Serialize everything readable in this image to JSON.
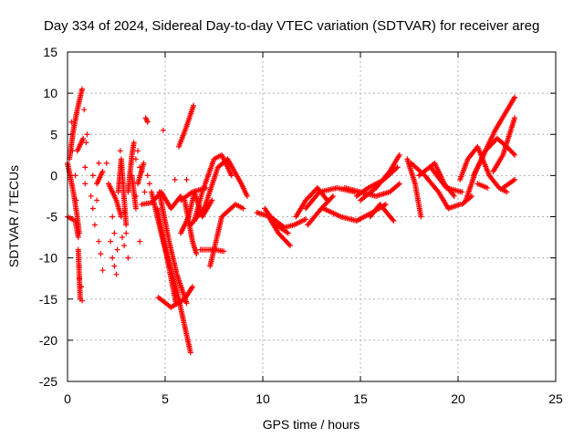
{
  "chart_data": {
    "type": "scatter",
    "title": "Day 334 of 2024, Sidereal Day-to-day VTEC variation (SDTVAR) for receiver areg",
    "xlabel": "GPS time / hours",
    "ylabel": "SDTVAR / TECUs",
    "xlim": [
      0,
      25
    ],
    "ylim": [
      -25,
      15
    ],
    "xticks": [
      0,
      5,
      10,
      15,
      20,
      25
    ],
    "yticks": [
      -25,
      -20,
      -15,
      -10,
      -5,
      0,
      5,
      10,
      15
    ],
    "grid": true,
    "marker": "+",
    "color": "#ff0000",
    "tracks": [
      {
        "points": [
          [
            0.0,
            1.5
          ],
          [
            0.3,
            -2.0
          ],
          [
            0.5,
            -5.0
          ],
          [
            0.6,
            -7.0
          ]
        ]
      },
      {
        "points": [
          [
            0.0,
            -5.0
          ],
          [
            0.4,
            -5.5
          ],
          [
            0.55,
            -7.5
          ]
        ]
      },
      {
        "points": [
          [
            0.1,
            2.0
          ],
          [
            0.3,
            5.5
          ],
          [
            0.5,
            8.0
          ],
          [
            0.75,
            10.5
          ]
        ]
      },
      {
        "points": [
          [
            0.5,
            3.0
          ],
          [
            0.8,
            4.5
          ]
        ]
      },
      {
        "points": [
          [
            0.55,
            -9.0
          ],
          [
            0.65,
            -15.0
          ]
        ]
      },
      {
        "points": [
          [
            1.5,
            -1.0
          ],
          [
            1.8,
            0.5
          ]
        ]
      },
      {
        "points": [
          [
            2.1,
            -1.0
          ],
          [
            2.5,
            -3.0
          ],
          [
            2.75,
            -5.0
          ]
        ]
      },
      {
        "points": [
          [
            2.6,
            -2.0
          ],
          [
            2.75,
            2.0
          ],
          [
            3.0,
            -6.0
          ]
        ]
      },
      {
        "points": [
          [
            3.1,
            -2.0
          ],
          [
            3.3,
            2.5
          ],
          [
            3.4,
            4.0
          ]
        ]
      },
      {
        "points": [
          [
            3.3,
            0.0
          ],
          [
            3.5,
            -4.0
          ]
        ]
      },
      {
        "points": [
          [
            3.6,
            -1.0
          ],
          [
            3.9,
            1.5
          ]
        ]
      },
      {
        "points": [
          [
            4.0,
            7.0
          ],
          [
            4.1,
            6.5
          ]
        ]
      },
      {
        "points": [
          [
            3.8,
            -3.5
          ],
          [
            4.3,
            -3.3
          ],
          [
            4.8,
            -2.0
          ],
          [
            5.3,
            -4.0
          ],
          [
            5.8,
            -2.5
          ]
        ]
      },
      {
        "points": [
          [
            4.3,
            -2.0
          ],
          [
            4.9,
            -8.0
          ],
          [
            5.6,
            -14.0
          ],
          [
            6.3,
            -21.5
          ]
        ]
      },
      {
        "points": [
          [
            4.6,
            -4.0
          ],
          [
            5.1,
            -10.0
          ],
          [
            5.55,
            -15.5
          ]
        ]
      },
      {
        "points": [
          [
            4.7,
            -2.0
          ],
          [
            5.2,
            -8.0
          ],
          [
            5.6,
            -12.0
          ],
          [
            6.1,
            -15.5
          ]
        ]
      },
      {
        "points": [
          [
            4.65,
            -14.8
          ],
          [
            5.3,
            -16.0
          ],
          [
            6.0,
            -15.0
          ],
          [
            6.4,
            -13.5
          ]
        ]
      },
      {
        "points": [
          [
            5.7,
            3.5
          ],
          [
            6.1,
            6.0
          ],
          [
            6.45,
            8.5
          ]
        ]
      },
      {
        "points": [
          [
            5.8,
            -3.0
          ],
          [
            6.4,
            -2.0
          ],
          [
            7.1,
            -1.5
          ]
        ]
      },
      {
        "points": [
          [
            5.8,
            -7.0
          ],
          [
            6.2,
            -5.0
          ],
          [
            6.5,
            -2.0
          ],
          [
            6.9,
            -5.0
          ],
          [
            7.4,
            -3.0
          ]
        ]
      },
      {
        "points": [
          [
            6.0,
            -3.0
          ],
          [
            6.4,
            -8.0
          ],
          [
            6.6,
            -9.5
          ]
        ]
      },
      {
        "points": [
          [
            6.5,
            -5.5
          ],
          [
            6.9,
            -2.0
          ],
          [
            7.5,
            2.0
          ],
          [
            7.9,
            2.5
          ],
          [
            8.4,
            0.0
          ]
        ]
      },
      {
        "points": [
          [
            6.3,
            -6.0
          ],
          [
            7.0,
            -4.0
          ],
          [
            7.7,
            1.0
          ],
          [
            8.2,
            2.0
          ],
          [
            8.9,
            -1.0
          ],
          [
            9.2,
            -2.5
          ]
        ]
      },
      {
        "points": [
          [
            6.8,
            -9.0
          ],
          [
            7.5,
            -9.0
          ],
          [
            8.0,
            -9.2
          ]
        ]
      },
      {
        "points": [
          [
            7.3,
            -11.0
          ],
          [
            7.9,
            -5.0
          ],
          [
            8.6,
            -3.5
          ],
          [
            9.0,
            -4.0
          ]
        ]
      },
      {
        "points": [
          [
            9.7,
            -4.5
          ],
          [
            10.4,
            -5.0
          ],
          [
            11.1,
            -6.3
          ],
          [
            11.6,
            -6.0
          ],
          [
            12.2,
            -5.3
          ]
        ]
      },
      {
        "points": [
          [
            10.1,
            -4.0
          ],
          [
            10.7,
            -6.0
          ],
          [
            11.3,
            -7.0
          ]
        ]
      },
      {
        "points": [
          [
            10.3,
            -5.0
          ],
          [
            10.8,
            -7.0
          ],
          [
            11.4,
            -8.5
          ]
        ]
      },
      {
        "points": [
          [
            11.7,
            -5.0
          ],
          [
            12.2,
            -3.0
          ],
          [
            12.8,
            -1.5
          ],
          [
            13.3,
            -3.0
          ]
        ]
      },
      {
        "points": [
          [
            12.2,
            -4.0
          ],
          [
            12.9,
            -2.0
          ],
          [
            13.8,
            -1.5
          ],
          [
            14.7,
            -2.0
          ]
        ]
      },
      {
        "points": [
          [
            12.3,
            -6.0
          ],
          [
            13.0,
            -4.0
          ],
          [
            13.6,
            -2.5
          ]
        ]
      },
      {
        "points": [
          [
            13.1,
            -4.0
          ],
          [
            14.0,
            -5.0
          ],
          [
            14.8,
            -5.5
          ],
          [
            15.6,
            -4.5
          ],
          [
            16.3,
            -3.5
          ]
        ]
      },
      {
        "points": [
          [
            14.2,
            -1.5
          ],
          [
            15.0,
            -2.0
          ],
          [
            15.8,
            -2.5
          ],
          [
            16.5,
            -2.0
          ],
          [
            17.0,
            -1.0
          ]
        ]
      },
      {
        "points": [
          [
            14.8,
            -2.5
          ],
          [
            15.4,
            -1.5
          ],
          [
            16.2,
            -0.5
          ],
          [
            16.9,
            1.0
          ]
        ]
      },
      {
        "points": [
          [
            15.0,
            -3.0
          ],
          [
            15.8,
            -1.5
          ],
          [
            16.5,
            0.5
          ],
          [
            17.0,
            2.5
          ]
        ]
      },
      {
        "points": [
          [
            15.5,
            -5.0
          ],
          [
            16.0,
            -3.5
          ],
          [
            16.7,
            -5.5
          ]
        ]
      },
      {
        "points": [
          [
            17.4,
            2.0
          ],
          [
            17.8,
            -1.0
          ],
          [
            18.1,
            -5.0
          ]
        ]
      },
      {
        "points": [
          [
            17.6,
            1.5
          ],
          [
            18.3,
            0.0
          ],
          [
            19.0,
            -2.0
          ],
          [
            19.5,
            -4.0
          ],
          [
            20.1,
            -3.5
          ]
        ]
      },
      {
        "points": [
          [
            18.6,
            1.0
          ],
          [
            19.4,
            -1.5
          ],
          [
            20.2,
            -2.0
          ]
        ]
      },
      {
        "points": [
          [
            18.0,
            0.0
          ],
          [
            18.8,
            1.5
          ],
          [
            19.3,
            -1.0
          ],
          [
            19.8,
            -2.5
          ]
        ]
      },
      {
        "points": [
          [
            20.1,
            -0.5
          ],
          [
            20.5,
            2.0
          ],
          [
            21.0,
            3.5
          ],
          [
            21.6,
            0.0
          ],
          [
            22.1,
            -1.5
          ],
          [
            22.5,
            -2.0
          ]
        ]
      },
      {
        "points": [
          [
            20.4,
            -3.0
          ],
          [
            20.9,
            0.5
          ],
          [
            21.4,
            3.0
          ],
          [
            21.9,
            5.5
          ],
          [
            22.4,
            7.5
          ],
          [
            22.9,
            9.5
          ]
        ]
      },
      {
        "points": [
          [
            20.8,
            0.0
          ],
          [
            21.4,
            3.0
          ],
          [
            22.0,
            4.5
          ],
          [
            22.5,
            3.5
          ],
          [
            22.9,
            2.5
          ]
        ]
      },
      {
        "points": [
          [
            21.8,
            0.5
          ],
          [
            22.3,
            2.5
          ],
          [
            22.9,
            7.0
          ]
        ]
      },
      {
        "points": [
          [
            22.3,
            -1.5
          ],
          [
            22.9,
            -0.5
          ]
        ]
      },
      {
        "points": [
          [
            20.2,
            -3.5
          ],
          [
            20.7,
            -2.5
          ]
        ]
      },
      {
        "points": [
          [
            21.0,
            -1.0
          ],
          [
            21.5,
            -1.5
          ]
        ]
      }
    ],
    "scattered_points": [
      [
        0.2,
        6.5
      ],
      [
        0.25,
        3.0
      ],
      [
        0.4,
        0.0
      ],
      [
        0.45,
        -3.0
      ],
      [
        0.6,
        -11.0
      ],
      [
        0.6,
        -12.5
      ],
      [
        0.7,
        -13.5
      ],
      [
        0.75,
        -15.2
      ],
      [
        0.9,
        -1.0
      ],
      [
        0.9,
        1.0
      ],
      [
        0.95,
        4.0
      ],
      [
        0.85,
        8.0
      ],
      [
        1.2,
        -2.5
      ],
      [
        1.3,
        -4.0
      ],
      [
        1.5,
        -3.0
      ],
      [
        1.3,
        0.0
      ],
      [
        1.4,
        -6.0
      ],
      [
        1.6,
        -8.0
      ],
      [
        1.7,
        -9.5
      ],
      [
        1.8,
        -11.5
      ],
      [
        2.2,
        -8.0
      ],
      [
        2.3,
        -10.0
      ],
      [
        2.4,
        -11.0
      ],
      [
        2.5,
        -12.0
      ],
      [
        2.55,
        -9.0
      ],
      [
        2.8,
        -7.5
      ],
      [
        2.9,
        -8.5
      ],
      [
        2.3,
        -5.0
      ],
      [
        2.4,
        -7.0
      ],
      [
        3.6,
        3.0
      ],
      [
        3.7,
        1.0
      ],
      [
        3.7,
        -8.0
      ],
      [
        3.1,
        -10.0
      ],
      [
        3.0,
        -7.0
      ],
      [
        2.9,
        -4.5
      ],
      [
        3.5,
        -2.5
      ],
      [
        3.95,
        -2.0
      ],
      [
        4.1,
        0.0
      ],
      [
        4.2,
        -1.0
      ],
      [
        5.5,
        -0.5
      ],
      [
        6.1,
        -0.5
      ],
      [
        2.0,
        1.5
      ],
      [
        2.7,
        3.0
      ],
      [
        3.5,
        2.0
      ],
      [
        3.8,
        0.5
      ],
      [
        1.0,
        5.0
      ],
      [
        1.6,
        1.5
      ],
      [
        4.9,
        5.5
      ]
    ]
  }
}
